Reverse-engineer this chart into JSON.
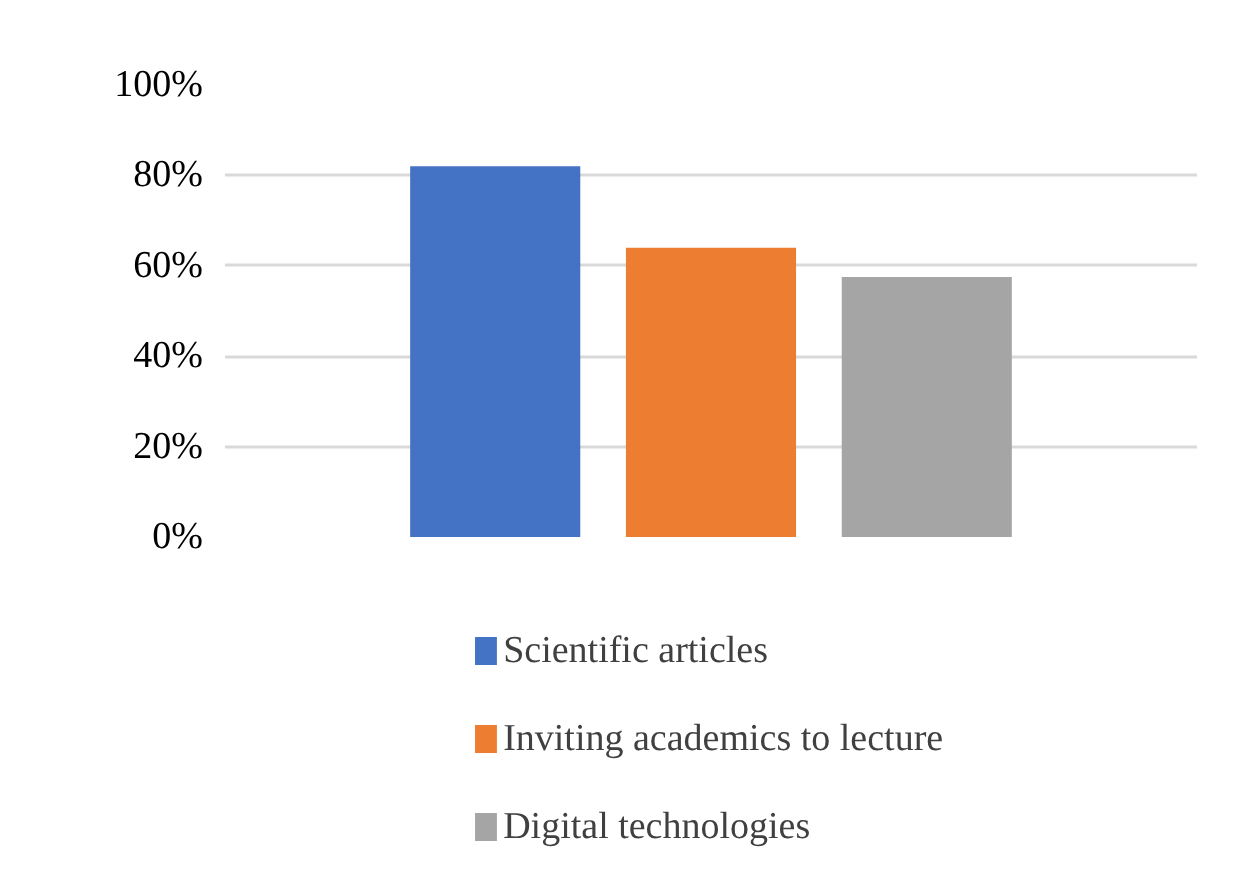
{
  "chart_data": {
    "type": "bar",
    "categories": [
      null
    ],
    "series": [
      {
        "name": "Scientific articles",
        "color": "#4472c4",
        "values": [
          82
        ]
      },
      {
        "name": "Inviting academics to lecture",
        "color": "#ed7d31",
        "values": [
          64
        ]
      },
      {
        "name": "Digital technologies",
        "color": "#a5a5a5",
        "values": [
          57.5
        ]
      }
    ],
    "ylim": [
      0,
      100
    ],
    "yticks": [
      {
        "value": 0,
        "label": "0%"
      },
      {
        "value": 20,
        "label": "20%"
      },
      {
        "value": 40,
        "label": "40%"
      },
      {
        "value": 60,
        "label": "60%"
      },
      {
        "value": 80,
        "label": "80%"
      },
      {
        "value": 100,
        "label": "100%"
      }
    ],
    "grid": "y",
    "legend": "bottom",
    "tick_labels": "y"
  }
}
